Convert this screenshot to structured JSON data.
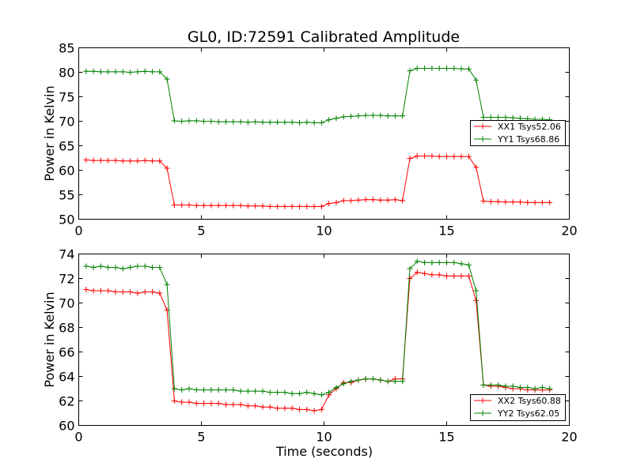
{
  "chart_data": [
    {
      "type": "line",
      "title": "GL0, ID:72591 Calibrated Amplitude",
      "xlabel": "",
      "ylabel": "Power in Kelvin",
      "xlim": [
        0,
        20
      ],
      "ylim": [
        50,
        85
      ],
      "xticks": [
        0,
        5,
        10,
        15,
        20
      ],
      "yticks": [
        50,
        55,
        60,
        65,
        70,
        75,
        80,
        85
      ],
      "grid": false,
      "legend": "right",
      "x": [
        0.3,
        0.6,
        0.9,
        1.2,
        1.5,
        1.8,
        2.1,
        2.4,
        2.7,
        3.0,
        3.3,
        3.6,
        3.9,
        4.2,
        4.5,
        4.8,
        5.1,
        5.4,
        5.7,
        6.0,
        6.3,
        6.6,
        6.9,
        7.2,
        7.5,
        7.8,
        8.1,
        8.4,
        8.7,
        9.0,
        9.3,
        9.6,
        9.9,
        10.2,
        10.5,
        10.8,
        11.1,
        11.4,
        11.7,
        12.0,
        12.3,
        12.6,
        12.9,
        13.2,
        13.5,
        13.8,
        14.1,
        14.4,
        14.7,
        15.0,
        15.3,
        15.6,
        15.9,
        16.2,
        16.5,
        16.8,
        17.1,
        17.4,
        17.7,
        18.0,
        18.3,
        18.6,
        18.9,
        19.2
      ],
      "series": [
        {
          "name": "XX1 Tsys52.06",
          "color": "#ff0000",
          "values": [
            62.1,
            62.0,
            62.0,
            62.0,
            62.0,
            61.9,
            61.9,
            61.9,
            62.0,
            61.9,
            61.9,
            60.4,
            52.9,
            52.9,
            52.9,
            52.8,
            52.8,
            52.8,
            52.8,
            52.8,
            52.8,
            52.8,
            52.7,
            52.7,
            52.7,
            52.6,
            52.6,
            52.6,
            52.6,
            52.6,
            52.6,
            52.6,
            52.6,
            53.2,
            53.4,
            53.8,
            53.8,
            53.9,
            54.0,
            54.0,
            53.9,
            53.9,
            54.0,
            53.8,
            62.4,
            62.9,
            62.9,
            62.9,
            62.8,
            62.8,
            62.8,
            62.8,
            62.8,
            60.6,
            53.7,
            53.6,
            53.6,
            53.5,
            53.5,
            53.5,
            53.4,
            53.4,
            53.4,
            53.4
          ]
        },
        {
          "name": "YY1 Tsys68.86",
          "color": "#008000",
          "values": [
            80.2,
            80.2,
            80.1,
            80.1,
            80.1,
            80.1,
            80.0,
            80.1,
            80.2,
            80.1,
            80.1,
            78.6,
            70.1,
            70.0,
            70.1,
            70.1,
            70.0,
            70.0,
            69.9,
            69.9,
            69.9,
            69.9,
            69.8,
            69.9,
            69.8,
            69.8,
            69.8,
            69.8,
            69.8,
            69.7,
            69.8,
            69.7,
            69.7,
            70.3,
            70.6,
            70.9,
            71.0,
            71.1,
            71.2,
            71.2,
            71.2,
            71.1,
            71.1,
            71.1,
            80.3,
            80.8,
            80.8,
            80.8,
            80.8,
            80.8,
            80.8,
            80.7,
            80.7,
            78.4,
            70.8,
            70.8,
            70.8,
            70.8,
            70.7,
            70.6,
            70.5,
            70.4,
            70.4,
            70.3
          ]
        }
      ]
    },
    {
      "type": "line",
      "title": "",
      "xlabel": "Time (seconds)",
      "ylabel": "Power in Kelvin",
      "xlim": [
        0,
        20
      ],
      "ylim": [
        60,
        74
      ],
      "xticks": [
        0,
        5,
        10,
        15,
        20
      ],
      "yticks": [
        60,
        62,
        64,
        66,
        68,
        70,
        72,
        74
      ],
      "grid": false,
      "legend": "bottom-right",
      "x": [
        0.3,
        0.6,
        0.9,
        1.2,
        1.5,
        1.8,
        2.1,
        2.4,
        2.7,
        3.0,
        3.3,
        3.6,
        3.9,
        4.2,
        4.5,
        4.8,
        5.1,
        5.4,
        5.7,
        6.0,
        6.3,
        6.6,
        6.9,
        7.2,
        7.5,
        7.8,
        8.1,
        8.4,
        8.7,
        9.0,
        9.3,
        9.6,
        9.9,
        10.2,
        10.5,
        10.8,
        11.1,
        11.4,
        11.7,
        12.0,
        12.3,
        12.6,
        12.9,
        13.2,
        13.5,
        13.8,
        14.1,
        14.4,
        14.7,
        15.0,
        15.3,
        15.6,
        15.9,
        16.2,
        16.5,
        16.8,
        17.1,
        17.4,
        17.7,
        18.0,
        18.3,
        18.6,
        18.9,
        19.2
      ],
      "series": [
        {
          "name": "XX2 Tsys60.88",
          "color": "#ff0000",
          "values": [
            71.1,
            71.0,
            71.0,
            71.0,
            70.9,
            70.9,
            70.9,
            70.8,
            70.9,
            70.9,
            70.8,
            69.4,
            62.0,
            61.9,
            61.9,
            61.8,
            61.8,
            61.8,
            61.8,
            61.7,
            61.7,
            61.7,
            61.6,
            61.6,
            61.5,
            61.5,
            61.4,
            61.4,
            61.4,
            61.3,
            61.3,
            61.2,
            61.3,
            62.5,
            63.0,
            63.5,
            63.5,
            63.7,
            63.8,
            63.8,
            63.7,
            63.6,
            63.8,
            63.8,
            72.0,
            72.5,
            72.4,
            72.3,
            72.3,
            72.2,
            72.2,
            72.2,
            72.2,
            70.2,
            63.3,
            63.2,
            63.2,
            63.1,
            63.0,
            63.0,
            62.9,
            62.9,
            62.9,
            62.9
          ]
        },
        {
          "name": "YY2 Tsys62.05",
          "color": "#008000",
          "values": [
            73.0,
            72.9,
            73.0,
            72.9,
            72.9,
            72.8,
            72.9,
            73.0,
            73.0,
            72.9,
            72.9,
            71.5,
            63.0,
            62.9,
            63.0,
            62.9,
            62.9,
            62.9,
            62.9,
            62.9,
            62.9,
            62.8,
            62.8,
            62.8,
            62.8,
            62.7,
            62.7,
            62.7,
            62.6,
            62.6,
            62.7,
            62.6,
            62.5,
            62.7,
            63.1,
            63.4,
            63.6,
            63.7,
            63.8,
            63.8,
            63.7,
            63.6,
            63.6,
            63.6,
            72.8,
            73.4,
            73.3,
            73.3,
            73.3,
            73.3,
            73.3,
            73.2,
            73.1,
            71.0,
            63.3,
            63.3,
            63.3,
            63.2,
            63.2,
            63.1,
            63.1,
            63.0,
            63.1,
            63.0
          ]
        }
      ]
    }
  ]
}
